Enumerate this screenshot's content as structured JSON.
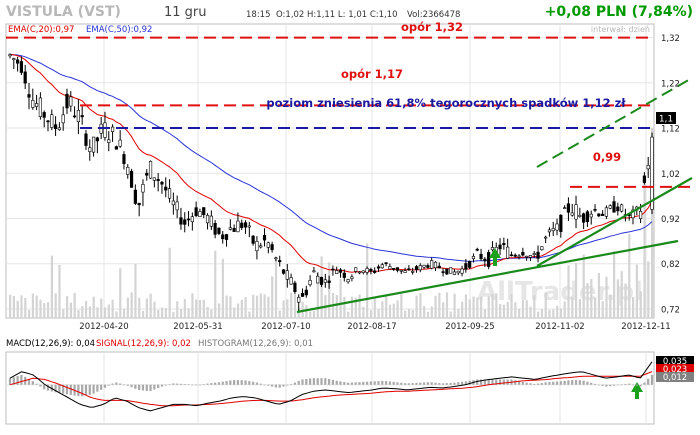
{
  "header": {
    "ticker": "VISTULA (VST)",
    "interval": "11 gru",
    "time": "18:15",
    "ohlc_text": "O:1,02 H:1,11 L: 1,01 C:1,10",
    "volume_text": "Vol:2366478",
    "change_text": "+0,08 PLN (7,84%)",
    "interval_label": "interwał: dzień"
  },
  "watermark": "AllTrader.pl",
  "colors": {
    "up": "#009a00",
    "ema20": "#e00000",
    "ema50": "#2a34d8",
    "resistance": "#e01010",
    "fibo": "#1a1aa0",
    "trend": "#1a8a1a",
    "macd": "#000000",
    "signal": "#e00000",
    "histogram": "#a8a8a8"
  },
  "chart_data": [
    {
      "type": "candlestick",
      "panel": "price",
      "legend": [
        {
          "label": "EMA(C,20):0,97",
          "color": "#e00000"
        },
        {
          "label": "EMA(C,50):0,92",
          "color": "#2a34d8"
        }
      ],
      "x_tick_labels": [
        "2012-04-20",
        "2012-05-31",
        "2012-07-10",
        "2012-08-17",
        "2012-09-25",
        "2012-11-02",
        "2012-12-11"
      ],
      "y_tick_labels": [
        "1,32",
        "1,22",
        "1,12",
        "1,02",
        "0,92",
        "0,82",
        "0,72"
      ],
      "ylim": [
        0.7,
        1.35
      ],
      "last_price_label": "1,1",
      "candles_ohlc_approx": [
        [
          1.22,
          1.3,
          1.2,
          1.28
        ],
        [
          1.27,
          1.33,
          1.24,
          1.26
        ],
        [
          1.26,
          1.29,
          1.16,
          1.18
        ],
        [
          1.18,
          1.22,
          1.12,
          1.15
        ],
        [
          1.15,
          1.2,
          1.1,
          1.12
        ],
        [
          1.12,
          1.22,
          1.1,
          1.18
        ],
        [
          1.18,
          1.24,
          1.13,
          1.14
        ],
        [
          1.14,
          1.16,
          1.05,
          1.07
        ],
        [
          1.07,
          1.14,
          1.03,
          1.12
        ],
        [
          1.12,
          1.2,
          1.09,
          1.1
        ],
        [
          1.1,
          1.12,
          1.02,
          1.05
        ],
        [
          1.05,
          1.07,
          0.92,
          0.95
        ],
        [
          0.95,
          1.05,
          0.93,
          1.03
        ],
        [
          1.03,
          1.07,
          0.98,
          1.0
        ],
        [
          1.0,
          1.03,
          0.93,
          0.95
        ],
        [
          0.95,
          0.97,
          0.89,
          0.91
        ],
        [
          0.91,
          0.96,
          0.88,
          0.94
        ],
        [
          0.94,
          0.98,
          0.9,
          0.92
        ],
        [
          0.92,
          0.95,
          0.86,
          0.88
        ],
        [
          0.88,
          0.92,
          0.84,
          0.9
        ],
        [
          0.9,
          0.97,
          0.87,
          0.91
        ],
        [
          0.91,
          0.93,
          0.84,
          0.86
        ],
        [
          0.86,
          0.9,
          0.83,
          0.87
        ],
        [
          0.87,
          0.88,
          0.8,
          0.82
        ],
        [
          0.82,
          0.84,
          0.76,
          0.78
        ],
        [
          0.78,
          0.8,
          0.72,
          0.74
        ],
        [
          0.74,
          0.81,
          0.73,
          0.8
        ],
        [
          0.8,
          0.83,
          0.77,
          0.78
        ],
        [
          0.78,
          0.82,
          0.77,
          0.81
        ],
        [
          0.81,
          0.83,
          0.78,
          0.79
        ],
        [
          0.79,
          0.82,
          0.78,
          0.81
        ],
        [
          0.81,
          0.83,
          0.79,
          0.8
        ],
        [
          0.8,
          0.83,
          0.79,
          0.82
        ],
        [
          0.82,
          0.83,
          0.8,
          0.81
        ],
        [
          0.81,
          0.83,
          0.79,
          0.8
        ],
        [
          0.8,
          0.82,
          0.79,
          0.81
        ],
        [
          0.81,
          0.84,
          0.8,
          0.82
        ],
        [
          0.82,
          0.84,
          0.8,
          0.81
        ],
        [
          0.81,
          0.83,
          0.79,
          0.8
        ],
        [
          0.8,
          0.82,
          0.78,
          0.81
        ],
        [
          0.81,
          0.85,
          0.8,
          0.84
        ],
        [
          0.84,
          0.88,
          0.81,
          0.83
        ],
        [
          0.83,
          0.9,
          0.82,
          0.86
        ],
        [
          0.86,
          0.89,
          0.82,
          0.84
        ],
        [
          0.84,
          0.87,
          0.82,
          0.85
        ],
        [
          0.85,
          0.87,
          0.81,
          0.83
        ],
        [
          0.83,
          0.89,
          0.82,
          0.88
        ],
        [
          0.88,
          0.92,
          0.86,
          0.9
        ],
        [
          0.9,
          0.99,
          0.88,
          0.95
        ],
        [
          0.95,
          0.98,
          0.89,
          0.92
        ],
        [
          0.92,
          0.96,
          0.9,
          0.94
        ],
        [
          0.94,
          0.97,
          0.91,
          0.93
        ],
        [
          0.93,
          0.96,
          0.9,
          0.95
        ],
        [
          0.95,
          0.98,
          0.91,
          0.92
        ],
        [
          0.92,
          0.95,
          0.9,
          0.94
        ],
        [
          0.94,
          1.11,
          0.93,
          1.1
        ]
      ],
      "resistance_lines": [
        {
          "label": "opór 1,32",
          "value": 1.32
        },
        {
          "label": "opór 1,17",
          "value": 1.17
        },
        {
          "label": "0,99",
          "value": 0.99
        }
      ],
      "fibonacci_level": {
        "label": "poziom zniesienia 61,8% tegorocznych spadków 1,12 zł",
        "value": 1.12
      }
    },
    {
      "type": "line",
      "panel": "macd",
      "legend": [
        {
          "label": "MACD(12,26,9): 0,04",
          "color": "#000000"
        },
        {
          "label": "SIGNAL(12,26,9): 0,02",
          "color": "#e00000"
        },
        {
          "label": "HISTOGRAM(12,26,9): 0,01",
          "color": "#808080"
        }
      ],
      "y_tick_labels": [
        "0,035",
        "0,023",
        "0,012"
      ],
      "ylim": [
        -0.06,
        0.05
      ],
      "series": [
        {
          "name": "MACD",
          "values": [
            0.01,
            0.02,
            0.015,
            0.0,
            -0.01,
            -0.02,
            -0.03,
            -0.035,
            -0.03,
            -0.02,
            -0.025,
            -0.035,
            -0.04,
            -0.035,
            -0.03,
            -0.03,
            -0.032,
            -0.028,
            -0.025,
            -0.02,
            -0.018,
            -0.02,
            -0.025,
            -0.03,
            -0.025,
            -0.015,
            -0.01,
            -0.008,
            -0.01,
            -0.012,
            -0.01,
            -0.008,
            -0.005,
            -0.006,
            -0.008,
            -0.006,
            -0.004,
            -0.005,
            -0.003,
            0.0,
            0.005,
            0.008,
            0.01,
            0.012,
            0.01,
            0.008,
            0.012,
            0.015,
            0.018,
            0.02,
            0.015,
            0.01,
            0.012,
            0.015,
            0.01,
            0.035
          ]
        },
        {
          "name": "SIGNAL",
          "values": [
            0.0,
            0.005,
            0.01,
            0.008,
            0.002,
            -0.005,
            -0.012,
            -0.02,
            -0.024,
            -0.024,
            -0.024,
            -0.027,
            -0.03,
            -0.032,
            -0.032,
            -0.031,
            -0.031,
            -0.03,
            -0.029,
            -0.027,
            -0.025,
            -0.024,
            -0.024,
            -0.025,
            -0.025,
            -0.023,
            -0.02,
            -0.018,
            -0.016,
            -0.015,
            -0.014,
            -0.013,
            -0.011,
            -0.01,
            -0.01,
            -0.009,
            -0.008,
            -0.007,
            -0.006,
            -0.005,
            -0.003,
            0.0,
            0.002,
            0.004,
            0.006,
            0.007,
            0.008,
            0.01,
            0.011,
            0.013,
            0.013,
            0.013,
            0.013,
            0.013,
            0.013,
            0.02
          ]
        }
      ]
    }
  ]
}
